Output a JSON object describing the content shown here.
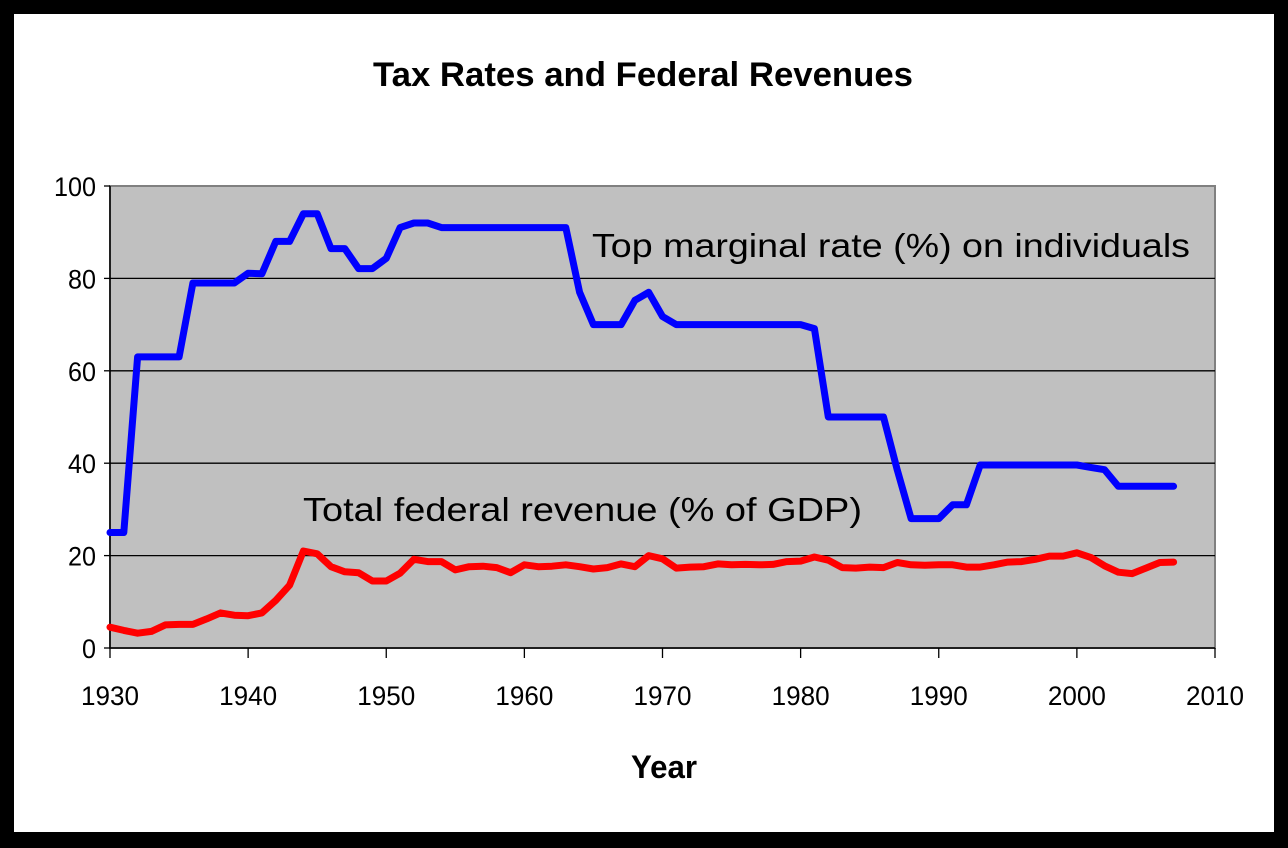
{
  "chart_data": {
    "type": "line",
    "title": "Tax Rates and Federal Revenues",
    "xlabel": "Year",
    "ylabel": "",
    "xlim": [
      1930,
      2010
    ],
    "ylim": [
      0,
      100
    ],
    "xticks": [
      1930,
      1940,
      1950,
      1960,
      1970,
      1980,
      1990,
      2000,
      2010
    ],
    "yticks": [
      0,
      20,
      40,
      60,
      80,
      100
    ],
    "grid": "horizontal",
    "plot_background": "#c0c0c0",
    "x": [
      1930,
      1931,
      1932,
      1933,
      1934,
      1935,
      1936,
      1937,
      1938,
      1939,
      1940,
      1941,
      1942,
      1943,
      1944,
      1945,
      1946,
      1947,
      1948,
      1949,
      1950,
      1951,
      1952,
      1953,
      1954,
      1955,
      1956,
      1957,
      1958,
      1959,
      1960,
      1961,
      1962,
      1963,
      1964,
      1965,
      1966,
      1967,
      1968,
      1969,
      1970,
      1971,
      1972,
      1973,
      1974,
      1975,
      1976,
      1977,
      1978,
      1979,
      1980,
      1981,
      1982,
      1983,
      1984,
      1985,
      1986,
      1987,
      1988,
      1989,
      1990,
      1991,
      1992,
      1993,
      1994,
      1995,
      1996,
      1997,
      1998,
      1999,
      2000,
      2001,
      2002,
      2003,
      2004,
      2005,
      2006,
      2007
    ],
    "series": [
      {
        "name": "Top marginal rate (%) on individuals",
        "color": "#0000ff",
        "values": [
          25,
          25,
          63,
          63,
          63,
          63,
          79,
          79,
          79,
          79,
          81.1,
          81,
          88,
          88,
          94,
          94,
          86.45,
          86.45,
          82.13,
          82.13,
          84.36,
          91,
          92,
          92,
          91,
          91,
          91,
          91,
          91,
          91,
          91,
          91,
          91,
          91,
          77,
          70,
          70,
          70,
          75.25,
          77,
          71.75,
          70,
          70,
          70,
          70,
          70,
          70,
          70,
          70,
          70,
          70,
          69.13,
          50,
          50,
          50,
          50,
          50,
          38.5,
          28,
          28,
          28,
          31,
          31,
          39.6,
          39.6,
          39.6,
          39.6,
          39.6,
          39.6,
          39.6,
          39.6,
          39.1,
          38.6,
          35,
          35,
          35,
          35,
          35
        ]
      },
      {
        "name": "Total federal revenue (% of GDP)",
        "color": "#ff0000",
        "values": [
          4.5,
          3.8,
          3.2,
          3.6,
          5,
          5.1,
          5.1,
          6.3,
          7.6,
          7.1,
          7,
          7.6,
          10.3,
          13.6,
          21,
          20.4,
          17.6,
          16.5,
          16.3,
          14.5,
          14.5,
          16.2,
          19.2,
          18.7,
          18.7,
          16.9,
          17.6,
          17.7,
          17.4,
          16.3,
          18,
          17.6,
          17.7,
          18,
          17.6,
          17.1,
          17.4,
          18.2,
          17.6,
          20,
          19.3,
          17.3,
          17.5,
          17.6,
          18.2,
          18,
          18.1,
          18,
          18.1,
          18.7,
          18.8,
          19.7,
          19,
          17.4,
          17.3,
          17.5,
          17.4,
          18.5,
          18,
          17.9,
          18,
          18,
          17.5,
          17.5,
          18,
          18.6,
          18.7,
          19.2,
          19.9,
          19.9,
          20.6,
          19.6,
          17.8,
          16.4,
          16.1,
          17.3,
          18.5,
          18.6
        ]
      }
    ]
  }
}
